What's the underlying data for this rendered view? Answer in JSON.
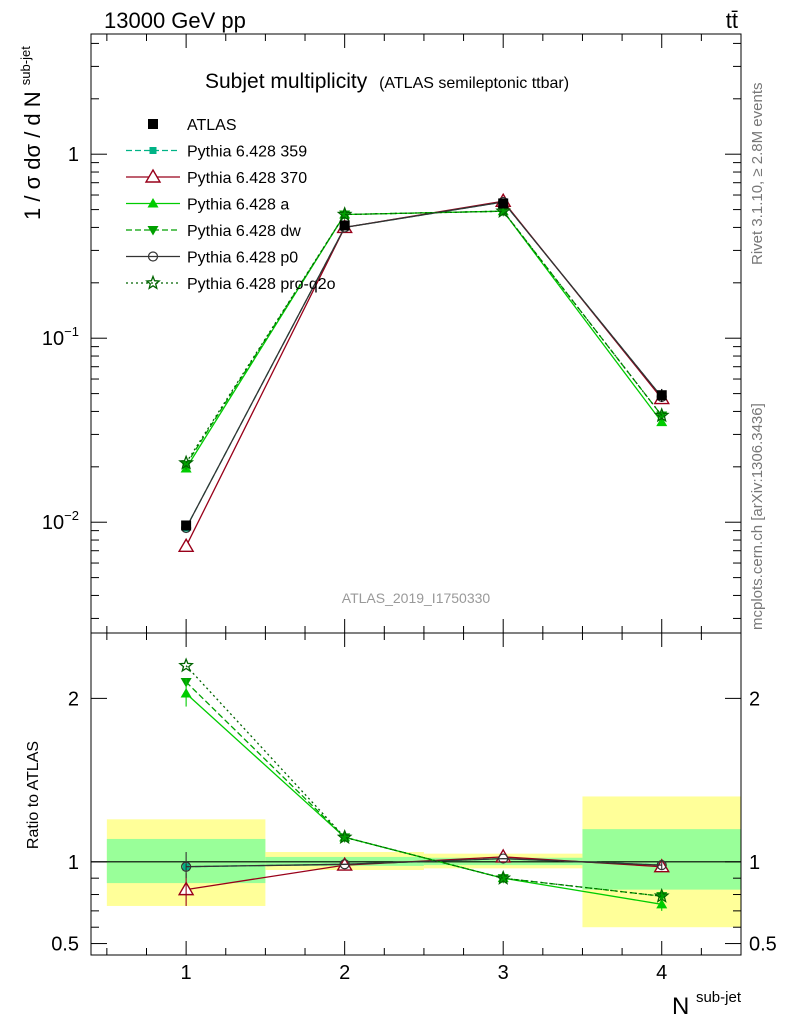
{
  "header": {
    "left": "13000 GeV pp",
    "right": "tt̄"
  },
  "side_labels": {
    "top": "Rivet 3.1.10, ≥ 2.8M events",
    "bottom": "mcplots.cern.ch [arXiv:1306.3436]"
  },
  "chart_data": [
    {
      "type": "line",
      "title": "Subjet multiplicity",
      "subtitle": "(ATLAS semileptonic ttbar)",
      "ylabel_main": "1 / σ dσ / d N",
      "ylabel_sup": "sub-jet",
      "watermark": "ATLAS_2019_I1750330",
      "yscale": "log",
      "ylim": [
        0.0025,
        4.5
      ],
      "y_ticks": [
        {
          "value": 0.01,
          "base": "10",
          "exp": "−2"
        },
        {
          "value": 0.1,
          "base": "10",
          "exp": "−1"
        },
        {
          "value": 1,
          "base": "1",
          "exp": ""
        }
      ],
      "xlim": [
        0.4,
        4.5
      ],
      "x": [
        1,
        2,
        3,
        4
      ],
      "data": {
        "name": "ATLAS",
        "color": "#000000",
        "values": [
          0.0096,
          0.41,
          0.54,
          0.049
        ],
        "errors": [
          0.0006,
          0.01,
          0.012,
          0.004
        ]
      },
      "series": [
        {
          "name": "Pythia 6.428 359",
          "color": "#00b386",
          "dash": "6,3",
          "marker": "square-small",
          "values": [
            0.0093,
            0.4,
            0.55,
            0.048
          ]
        },
        {
          "name": "Pythia 6.428 370",
          "color": "#99001a",
          "dash": "",
          "marker": "triangle-open",
          "values": [
            0.0074,
            0.4,
            0.555,
            0.047
          ]
        },
        {
          "name": "Pythia 6.428 a",
          "color": "#00cc00",
          "dash": "",
          "marker": "triangle-filled",
          "values": [
            0.0196,
            0.47,
            0.49,
            0.035
          ]
        },
        {
          "name": "Pythia 6.428 dw",
          "color": "#00a000",
          "dash": "6,3",
          "marker": "triangle-down",
          "values": [
            0.0205,
            0.47,
            0.49,
            0.038
          ]
        },
        {
          "name": "Pythia 6.428 p0",
          "color": "#333333",
          "dash": "",
          "marker": "circle-open",
          "values": [
            0.0093,
            0.4,
            0.55,
            0.048
          ]
        },
        {
          "name": "Pythia 6.428 pro-q2o",
          "color": "#006400",
          "dash": "2,3",
          "marker": "star",
          "values": [
            0.021,
            0.47,
            0.49,
            0.038
          ]
        }
      ]
    },
    {
      "type": "line",
      "ylabel": "Ratio to ATLAS",
      "xlabel_base": "N",
      "xlabel_sup": "sub-jet",
      "ylim": [
        0.43,
        2.4
      ],
      "y_ticks": [
        0.5,
        1,
        2
      ],
      "x_ticks": [
        1,
        2,
        3,
        4
      ],
      "bands": [
        {
          "x0": 0.5,
          "x1": 1.5,
          "yellow": [
            0.73,
            1.26
          ],
          "green": [
            0.87,
            1.14
          ]
        },
        {
          "x0": 1.5,
          "x1": 2.5,
          "yellow": [
            0.95,
            1.06
          ],
          "green": [
            0.975,
            1.03
          ]
        },
        {
          "x0": 2.5,
          "x1": 3.5,
          "yellow": [
            0.96,
            1.05
          ],
          "green": [
            0.98,
            1.025
          ]
        },
        {
          "x0": 3.5,
          "x1": 4.5,
          "yellow": [
            0.6,
            1.4
          ],
          "green": [
            0.83,
            1.2
          ]
        }
      ],
      "series": [
        {
          "name": "Pythia 6.428 359",
          "values": [
            0.97,
            0.985,
            1.02,
            0.98
          ]
        },
        {
          "name": "Pythia 6.428 370",
          "values": [
            0.83,
            0.98,
            1.03,
            0.97
          ]
        },
        {
          "name": "Pythia 6.428 a",
          "values": [
            2.03,
            1.15,
            0.9,
            0.74
          ]
        },
        {
          "name": "Pythia 6.428 dw",
          "values": [
            2.1,
            1.15,
            0.9,
            0.79
          ]
        },
        {
          "name": "Pythia 6.428 p0",
          "values": [
            0.97,
            0.985,
            1.02,
            0.98
          ]
        },
        {
          "name": "Pythia 6.428 pro-q2o",
          "values": [
            2.2,
            1.15,
            0.9,
            0.79
          ]
        }
      ],
      "errors": [
        {
          "series": "Pythia 6.428 370",
          "x": 1,
          "lo": 0.73,
          "hi": 0.93
        },
        {
          "series": "Pythia 6.428 a",
          "x": 1,
          "lo": 1.95,
          "hi": 2.12
        },
        {
          "series": "Pythia 6.428 p0",
          "x": 1,
          "lo": 0.9,
          "hi": 1.06
        },
        {
          "series": "Pythia 6.428 a",
          "x": 4,
          "lo": 0.7,
          "hi": 0.78
        },
        {
          "series": "Pythia 6.428 dw",
          "x": 4,
          "lo": 0.76,
          "hi": 0.82
        },
        {
          "series": "Pythia 6.428 p0",
          "x": 4,
          "lo": 0.95,
          "hi": 1.01
        }
      ]
    }
  ]
}
